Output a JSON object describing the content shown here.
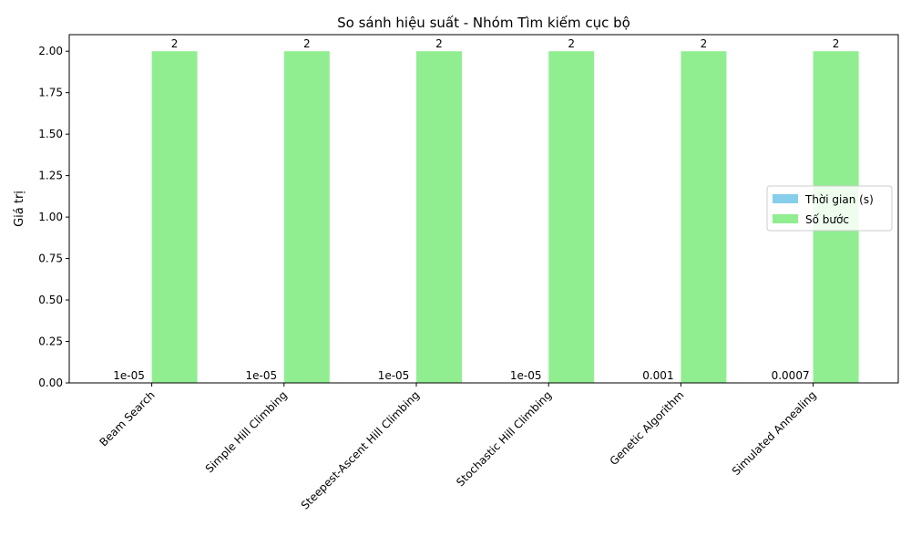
{
  "chart_data": {
    "type": "bar",
    "title": "So sánh hiệu suất - Nhóm Tìm kiếm cục bộ",
    "xlabel": "",
    "ylabel": "Giá trị",
    "ylim": [
      0,
      2.1
    ],
    "yticks": [
      "0.00",
      "0.25",
      "0.50",
      "0.75",
      "1.00",
      "1.25",
      "1.50",
      "1.75",
      "2.00"
    ],
    "categories": [
      "Beam Search",
      "Simple Hill Climbing",
      "Steepest-Ascent Hill Climbing",
      "Stochastic Hill Climbing",
      "Genetic Algorithm",
      "Simulated Annealing"
    ],
    "series": [
      {
        "name": "Thời gian (s)",
        "color": "#87ceeb",
        "values": [
          1e-05,
          1e-05,
          1e-05,
          1e-05,
          0.001,
          0.0007
        ],
        "labels": [
          "1e-05",
          "1e-05",
          "1e-05",
          "1e-05",
          "0.001",
          "0.0007"
        ]
      },
      {
        "name": "Số bước",
        "color": "#90ee90",
        "values": [
          2,
          2,
          2,
          2,
          2,
          2
        ],
        "labels": [
          "2",
          "2",
          "2",
          "2",
          "2",
          "2"
        ]
      }
    ],
    "legend_position": "center-right",
    "grid": false
  }
}
